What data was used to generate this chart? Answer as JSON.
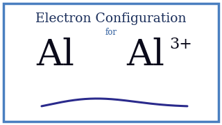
{
  "title": "Electron Configuration",
  "subtitle": "for",
  "symbol_left": "Al",
  "symbol_right": "Al",
  "superscript": "3+",
  "bg_color": "#ffffff",
  "border_color": "#4a7fc0",
  "title_color": "#1a2e5a",
  "subtitle_color": "#2a5a9c",
  "symbol_color": "#0a0a1a",
  "superscript_color": "#0a0a1a",
  "wave_color": "#2a2a8c",
  "border_linewidth": 2.5,
  "title_fontsize": 13.5,
  "subtitle_fontsize": 8.5,
  "symbol_fontsize": 38,
  "superscript_fontsize": 16
}
